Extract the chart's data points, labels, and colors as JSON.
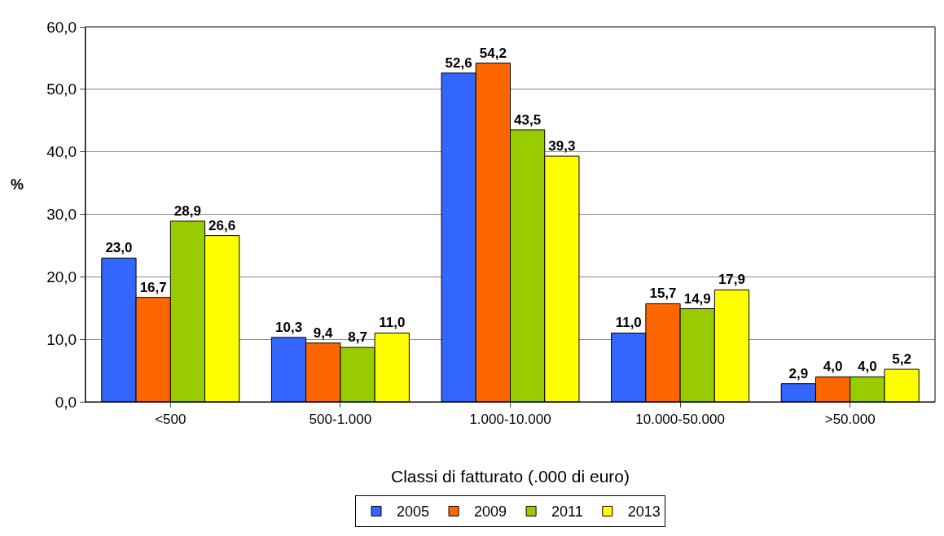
{
  "chart_data": {
    "type": "bar",
    "xlabel": "Classi di fatturato (.000 di euro)",
    "ylabel": "%",
    "categories": [
      "<500",
      "500-1.000",
      "1.000-10.000",
      "10.000-50.000",
      ">50.000"
    ],
    "series": [
      {
        "name": "2005",
        "color": "#3366ff",
        "values": [
          23.0,
          10.3,
          52.6,
          11.0,
          2.9
        ],
        "value_labels": [
          "23,0",
          "10,3",
          "52,6",
          "11,0",
          "2,9"
        ]
      },
      {
        "name": "2009",
        "color": "#ff6600",
        "values": [
          16.7,
          9.4,
          54.2,
          15.7,
          4.0
        ],
        "value_labels": [
          "16,7",
          "9,4",
          "54,2",
          "15,7",
          "4,0"
        ]
      },
      {
        "name": "2011",
        "color": "#99cc00",
        "values": [
          28.9,
          8.7,
          43.5,
          14.9,
          4.0
        ],
        "value_labels": [
          "28,9",
          "8,7",
          "43,5",
          "14,9",
          "4,0"
        ]
      },
      {
        "name": "2013",
        "color": "#ffff00",
        "values": [
          26.6,
          11.0,
          39.3,
          17.9,
          5.2
        ],
        "value_labels": [
          "26,6",
          "11,0",
          "39,3",
          "17,9",
          "5,2"
        ]
      }
    ],
    "ylim": [
      0,
      60
    ],
    "yticks": [
      {
        "value": 0,
        "label": "0,0"
      },
      {
        "value": 10,
        "label": "10,0"
      },
      {
        "value": 20,
        "label": "20,0"
      },
      {
        "value": 30,
        "label": "30,0"
      },
      {
        "value": 40,
        "label": "40,0"
      },
      {
        "value": 50,
        "label": "50,0"
      },
      {
        "value": 60,
        "label": "60,0"
      }
    ],
    "grid": "y",
    "legend": "bottom"
  }
}
